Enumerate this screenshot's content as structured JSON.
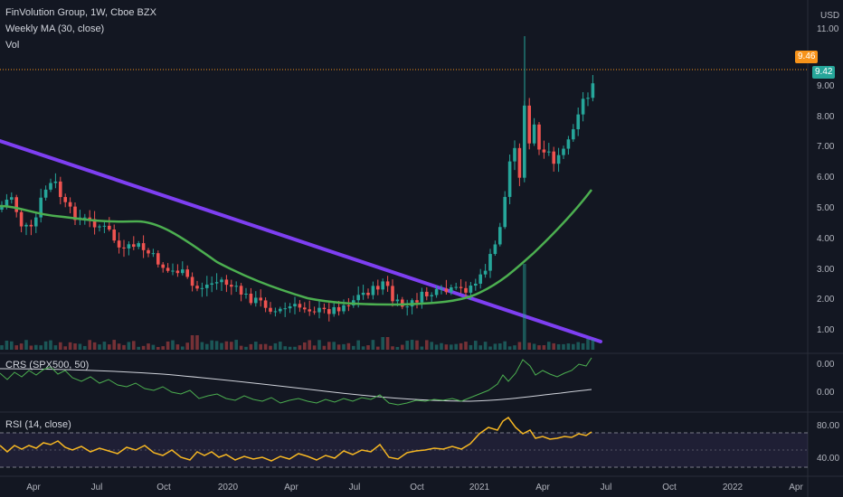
{
  "legend": {
    "symbol": "FinVolution Group, 1W, Cboe BZX",
    "ma": "Weekly MA (30, close)",
    "vol": "Vol"
  },
  "price_axis": {
    "currency": "USD",
    "labels": [
      "11.00",
      "9.00",
      "8.00",
      "7.00",
      "6.00",
      "5.00",
      "4.00",
      "3.00",
      "2.00",
      "1.00"
    ],
    "last_price": "9.42",
    "prev_close": "9.46"
  },
  "crs_pane": {
    "label": "CRS (SPX500, 50)",
    "labels": [
      "0.00",
      "0.00"
    ]
  },
  "rsi_pane": {
    "label": "RSI (14, close)",
    "labels": [
      "80.00",
      "40.00"
    ]
  },
  "time_axis": [
    "Apr",
    "Jul",
    "Oct",
    "2020",
    "Apr",
    "Jul",
    "Oct",
    "2021",
    "Apr",
    "Jul",
    "Oct",
    "2022",
    "Apr"
  ],
  "colors": {
    "background": "#131722",
    "up": "#26a69a",
    "down": "#ef5350",
    "ma": "#4caf50",
    "trendline": "#7e3ff2",
    "rsi": "#f5b623",
    "rsi_band": "#7e57c2",
    "last_price_tag": "#26a69a",
    "prev_tag": "#f7931a"
  }
}
